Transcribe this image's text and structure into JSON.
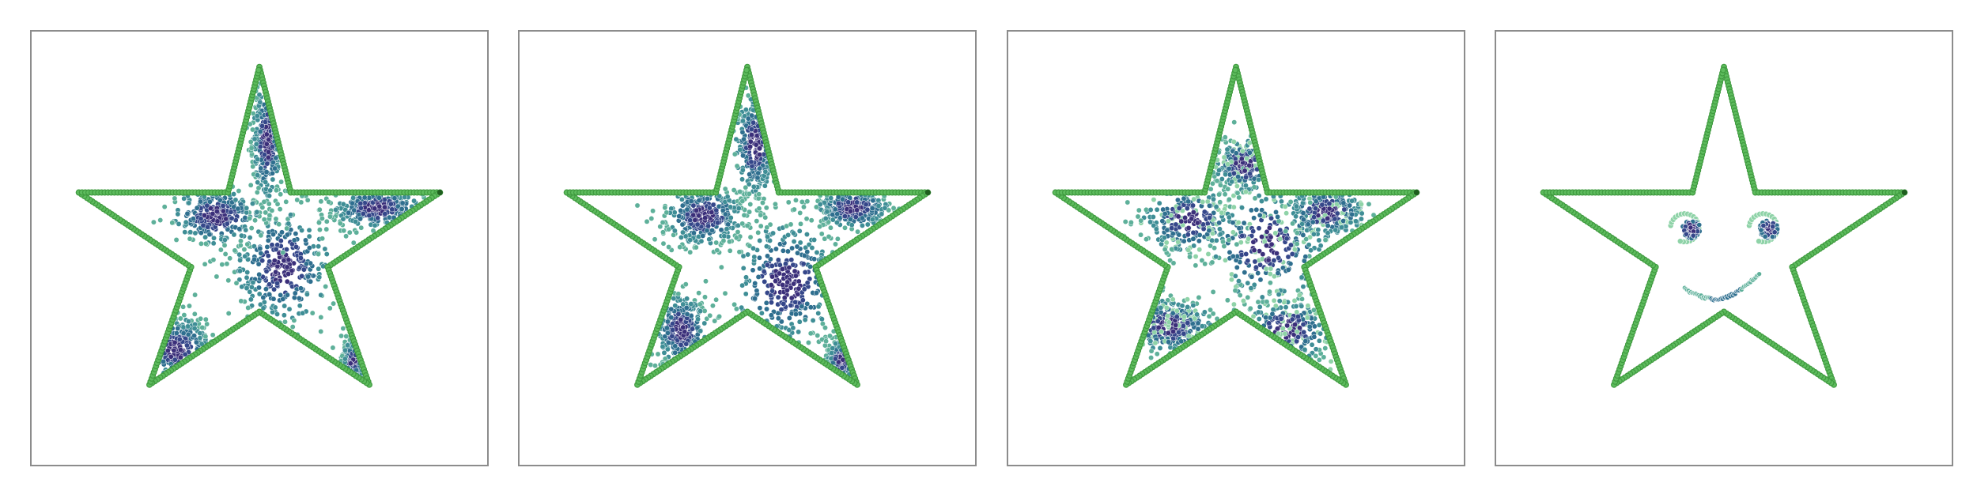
{
  "figure": {
    "panels": [
      {
        "id": "panel-1",
        "style": "scatter",
        "note": ""
      },
      {
        "id": "panel-2",
        "style": "scatter",
        "note": ""
      },
      {
        "id": "panel-3",
        "style": "scatter",
        "note": ""
      },
      {
        "id": "panel-4",
        "style": "face",
        "note": ""
      }
    ],
    "colors": {
      "outline": "#3f9a3f",
      "outline_dot": "#5dbb5d",
      "dense": "#3b2f7a",
      "mid": "#2f6f8f",
      "light": "#5eb09a",
      "pale": "#8fd3a8"
    }
  }
}
